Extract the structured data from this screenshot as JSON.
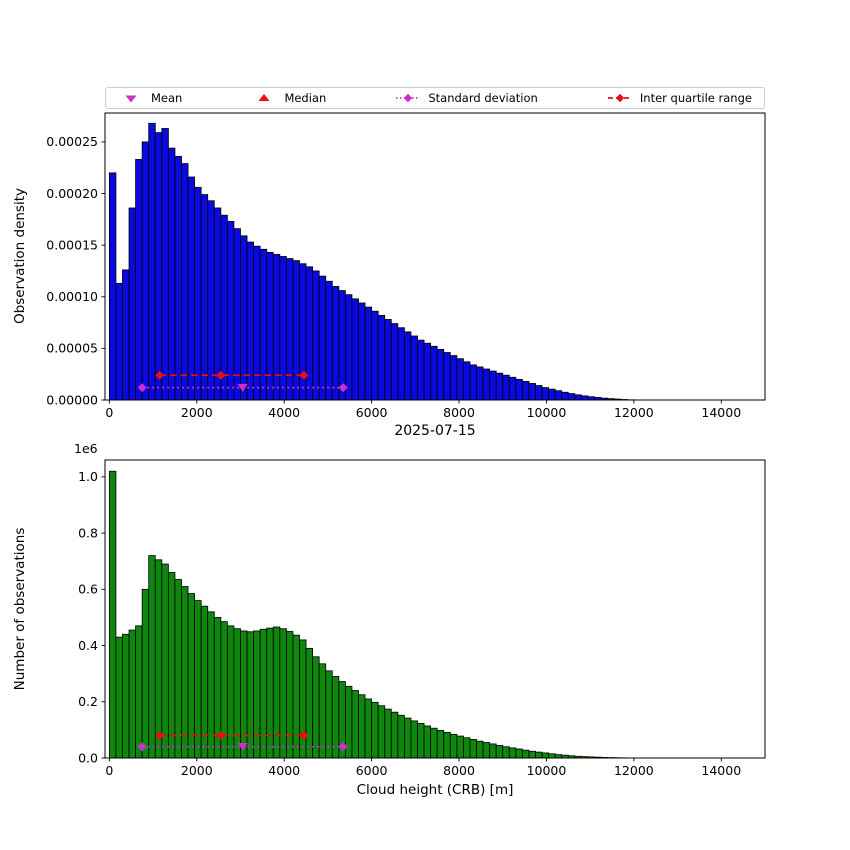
{
  "figure": {
    "title": "2025-07-15",
    "xlabel": "Cloud height (CRB) [m]",
    "offset_label": "1e6",
    "background_color": "#ffffff"
  },
  "legend": {
    "items": [
      {
        "label": "Mean",
        "marker": "triangle_down",
        "color": "#cc2fcc"
      },
      {
        "label": "Median",
        "marker": "triangle_up",
        "color": "#ea0f0f"
      },
      {
        "label": "Standard deviation",
        "marker": "diamond_dotted",
        "color": "#cc2fcc"
      },
      {
        "label": "Inter quartile range",
        "marker": "diamond_dashed",
        "color": "#ea0f0f"
      }
    ]
  },
  "chart_data": [
    {
      "type": "bar",
      "panel": "top",
      "ylabel": "Observation density",
      "bin_start": 0,
      "bin_width": 150,
      "value_scale": 1e-05,
      "values": [
        22.0,
        11.3,
        12.6,
        18.6,
        23.3,
        25.0,
        26.8,
        25.9,
        26.3,
        24.4,
        23.6,
        22.9,
        21.6,
        20.6,
        19.9,
        19.3,
        18.6,
        17.9,
        17.3,
        16.6,
        15.9,
        15.3,
        14.9,
        14.6,
        14.3,
        14.1,
        13.9,
        13.7,
        13.5,
        13.2,
        12.9,
        12.5,
        12.0,
        11.5,
        11.0,
        10.6,
        10.2,
        9.8,
        9.4,
        9.0,
        8.6,
        8.2,
        7.8,
        7.4,
        7.0,
        6.6,
        6.2,
        5.8,
        5.5,
        5.2,
        4.9,
        4.6,
        4.3,
        4.0,
        3.7,
        3.4,
        3.2,
        3.0,
        2.8,
        2.6,
        2.4,
        2.2,
        2.0,
        1.8,
        1.6,
        1.4,
        1.2,
        1.05,
        0.9,
        0.75,
        0.62,
        0.5,
        0.4,
        0.32,
        0.25,
        0.18,
        0.13,
        0.09,
        0.05,
        0.02
      ],
      "xlim": [
        -100,
        15000
      ],
      "ylim": [
        0,
        0.000278
      ],
      "xticks": [
        0,
        2000,
        4000,
        6000,
        8000,
        10000,
        12000,
        14000
      ],
      "xtick_labels": [
        "0",
        "2000",
        "4000",
        "6000",
        "8000",
        "10000",
        "12000",
        "14000"
      ],
      "yticks": [
        0,
        5e-05,
        0.0001,
        0.00015,
        0.0002,
        0.00025
      ],
      "ytick_labels": [
        "0.00000",
        "0.00005",
        "0.00010",
        "0.00015",
        "0.00020",
        "0.00025"
      ],
      "bar_color": "#0a0ae0",
      "bar_edge_color": "#000000",
      "stats": {
        "mean": 3050,
        "median": 2550,
        "std_low": 750,
        "std_high": 5350,
        "std_line_y": 1.2,
        "iqr_low": 1150,
        "iqr_high": 4450,
        "iqr_line_y": 2.4
      }
    },
    {
      "type": "bar",
      "panel": "bottom",
      "ylabel": "Number of observations",
      "bin_start": 0,
      "bin_width": 150,
      "value_scale": 1000000,
      "values": [
        1.02,
        0.43,
        0.44,
        0.455,
        0.47,
        0.6,
        0.72,
        0.705,
        0.69,
        0.66,
        0.635,
        0.61,
        0.585,
        0.56,
        0.54,
        0.52,
        0.5,
        0.485,
        0.47,
        0.46,
        0.452,
        0.449,
        0.452,
        0.458,
        0.462,
        0.466,
        0.46,
        0.45,
        0.437,
        0.42,
        0.39,
        0.36,
        0.335,
        0.31,
        0.29,
        0.272,
        0.255,
        0.24,
        0.225,
        0.21,
        0.198,
        0.186,
        0.174,
        0.163,
        0.152,
        0.142,
        0.132,
        0.123,
        0.114,
        0.106,
        0.098,
        0.091,
        0.084,
        0.078,
        0.072,
        0.066,
        0.06,
        0.055,
        0.05,
        0.045,
        0.04,
        0.036,
        0.032,
        0.028,
        0.024,
        0.021,
        0.018,
        0.015,
        0.012,
        0.01,
        0.008,
        0.006,
        0.005,
        0.004,
        0.003,
        0.002,
        0.0015,
        0.001,
        0.0006,
        0.0003
      ],
      "xlim": [
        -100,
        15000
      ],
      "ylim": [
        0,
        1060000
      ],
      "xticks": [
        0,
        2000,
        4000,
        6000,
        8000,
        10000,
        12000,
        14000
      ],
      "xtick_labels": [
        "0",
        "2000",
        "4000",
        "6000",
        "8000",
        "10000",
        "12000",
        "14000"
      ],
      "yticks": [
        0,
        200000,
        400000,
        600000,
        800000,
        1000000
      ],
      "ytick_labels": [
        "0.0",
        "0.2",
        "0.4",
        "0.6",
        "0.8",
        "1.0"
      ],
      "bar_color": "#0f870f",
      "bar_edge_color": "#000000",
      "stats": {
        "mean": 3050,
        "median": 2550,
        "std_low": 750,
        "std_high": 5350,
        "std_line_y": 0.04,
        "iqr_low": 1150,
        "iqr_high": 4450,
        "iqr_line_y": 0.08
      }
    }
  ]
}
